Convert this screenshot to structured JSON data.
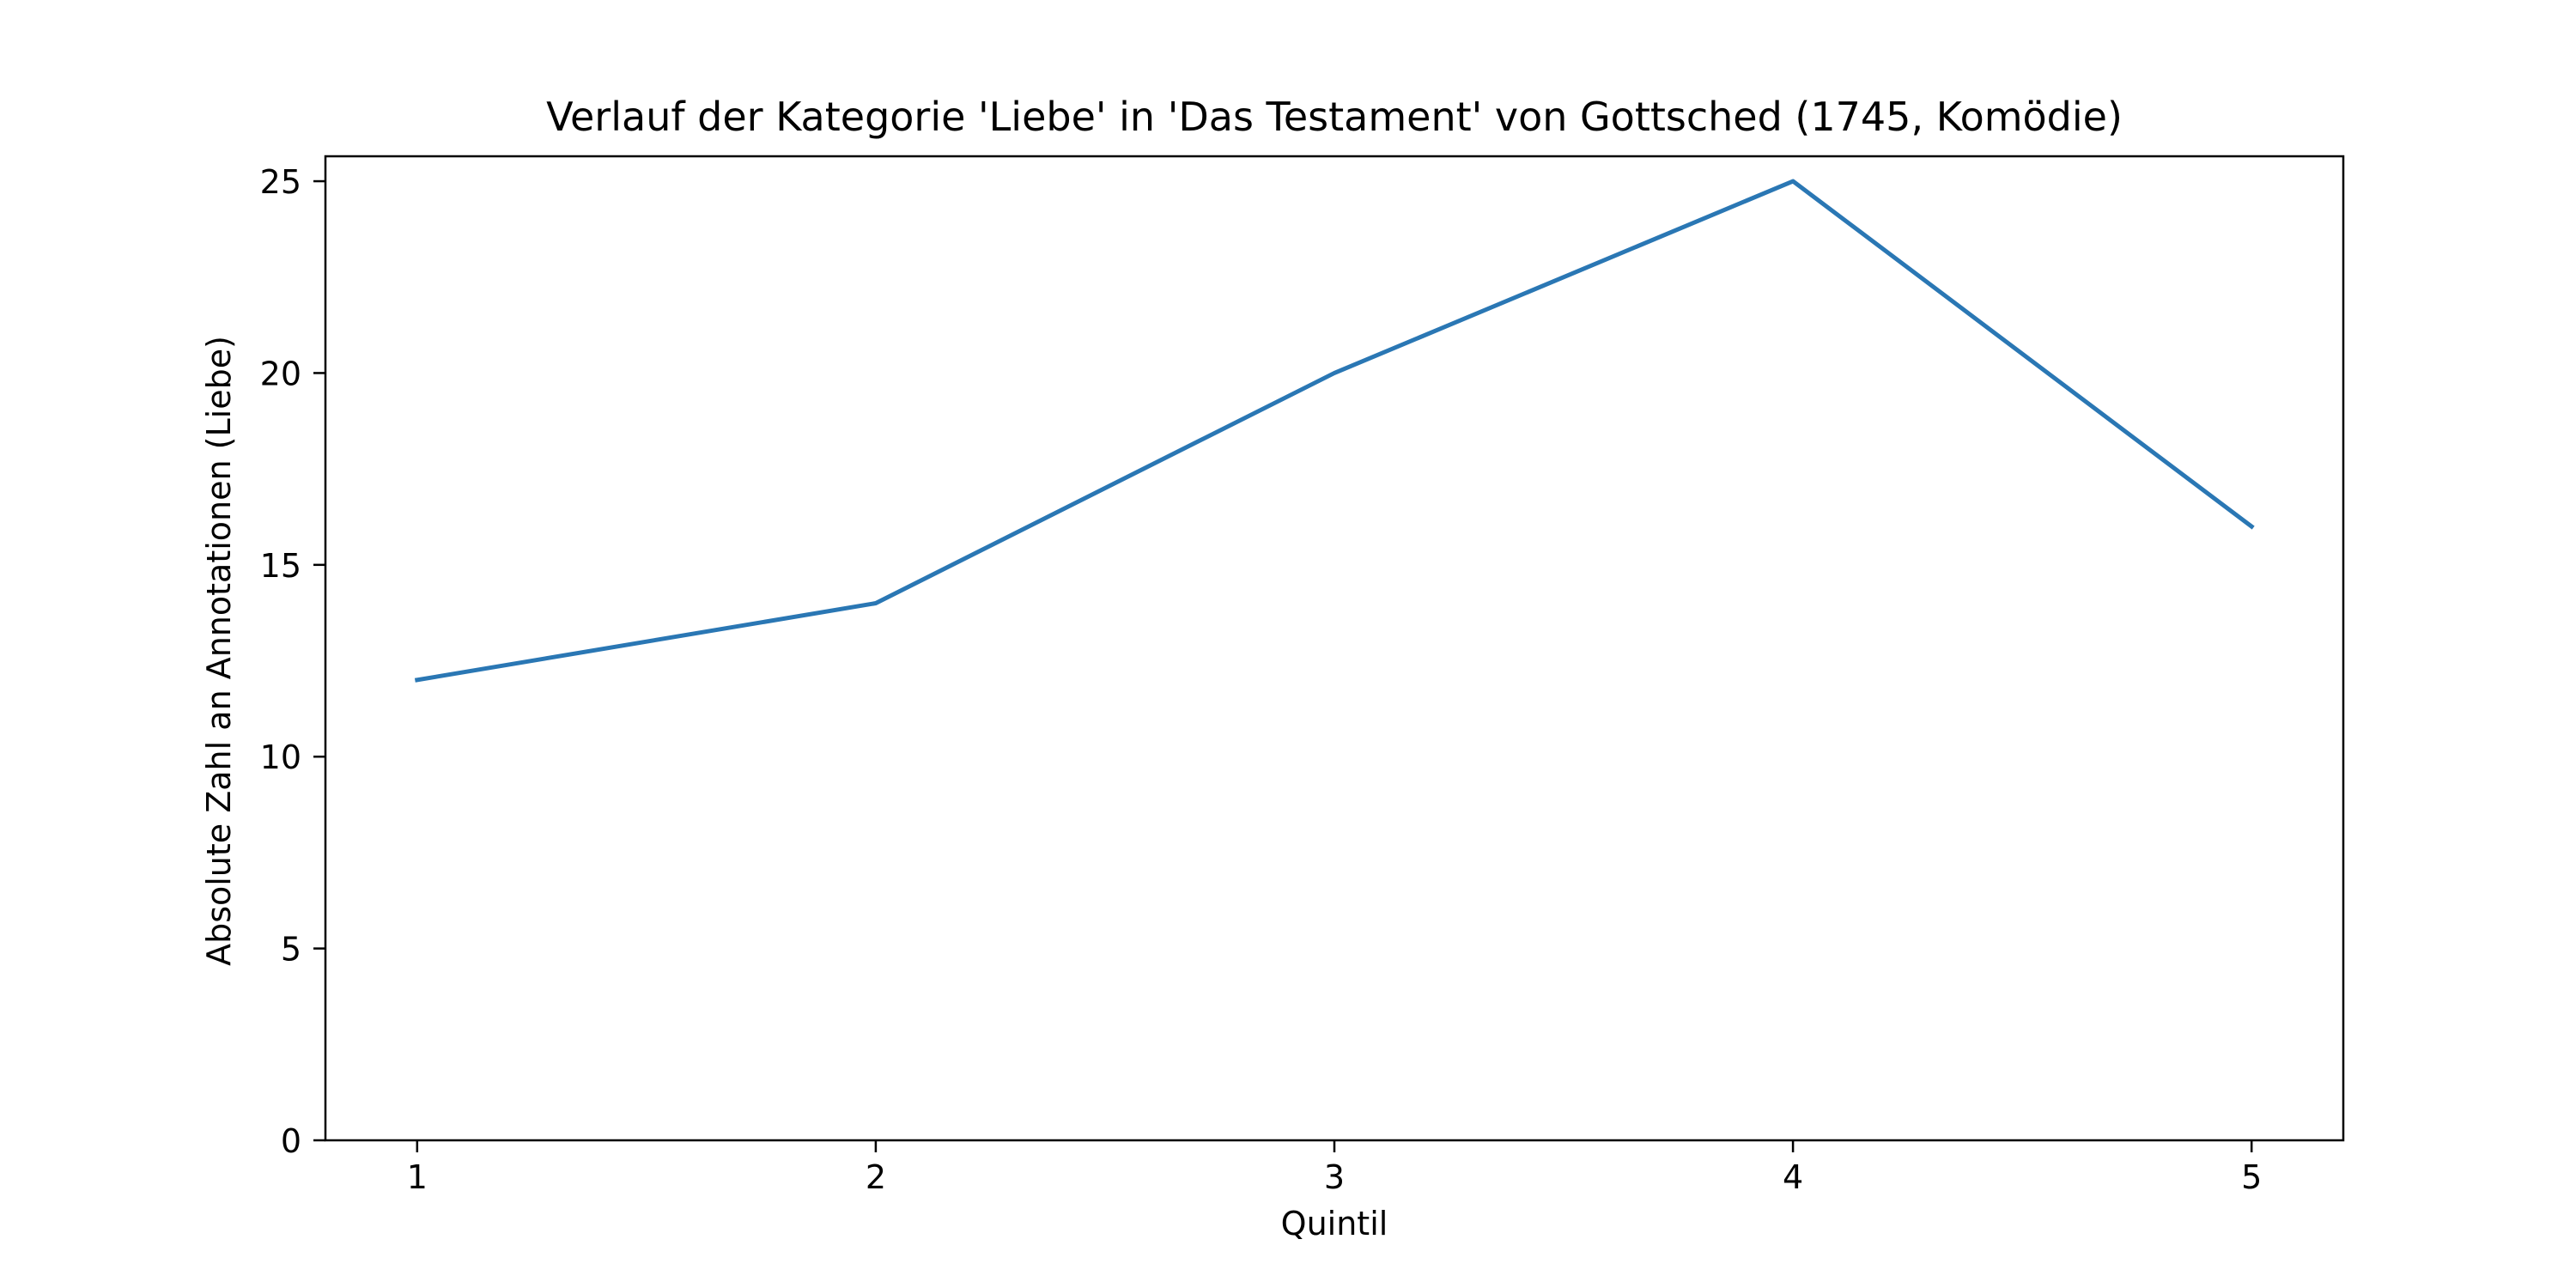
{
  "chart_data": {
    "type": "line",
    "title": "Verlauf der Kategorie 'Liebe' in 'Das Testament' von Gottsched (1745, Komödie)",
    "xlabel": "Quintil",
    "ylabel": "Absolute Zahl an Annotationen (Liebe)",
    "x": [
      1,
      2,
      3,
      4,
      5
    ],
    "series": [
      {
        "values": [
          12,
          14,
          20,
          25,
          16
        ],
        "color": "#2a77b4"
      }
    ],
    "xticks": [
      "1",
      "2",
      "3",
      "4",
      "5"
    ],
    "yticks": [
      "0",
      "5",
      "10",
      "15",
      "20",
      "25"
    ],
    "xlim": [
      0.8,
      5.2
    ],
    "ylim": [
      0,
      25.65
    ],
    "grid": false,
    "legend": "none"
  }
}
